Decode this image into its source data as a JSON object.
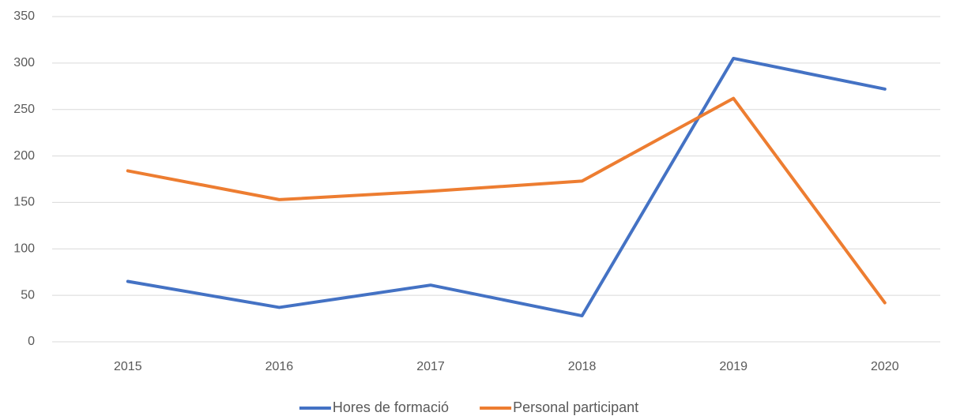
{
  "chart_data": {
    "type": "line",
    "categories": [
      "2015",
      "2016",
      "2017",
      "2018",
      "2019",
      "2020"
    ],
    "series": [
      {
        "name": "Hores de formació",
        "color": "#4472c4",
        "values": [
          65,
          37,
          61,
          28,
          305,
          272
        ]
      },
      {
        "name": "Personal participant",
        "color": "#ed7d31",
        "values": [
          184,
          153,
          162,
          173,
          262,
          42
        ]
      }
    ],
    "ylim": [
      0,
      350
    ],
    "yticks": [
      0,
      50,
      100,
      150,
      200,
      250,
      300,
      350
    ],
    "grid": true,
    "legend": "bottom"
  }
}
